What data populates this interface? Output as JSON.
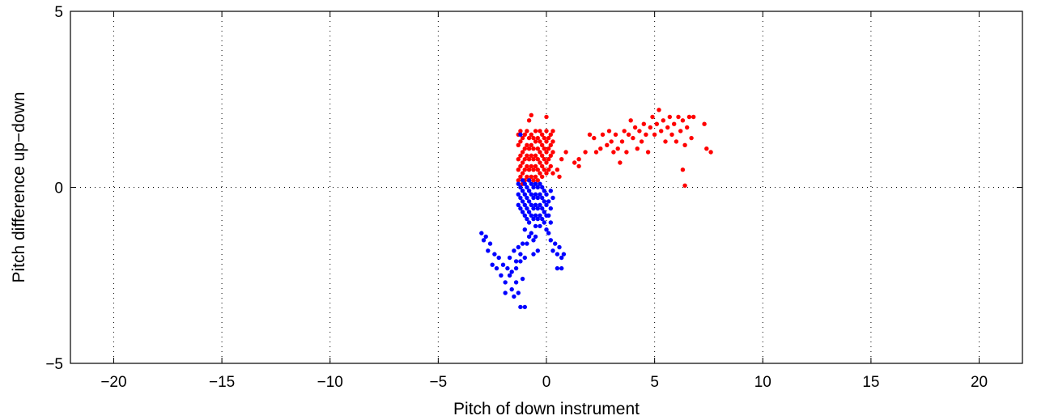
{
  "chart_data": {
    "type": "scatter",
    "title": "",
    "xlabel": "Pitch of down instrument",
    "ylabel": "Pitch difference up−down",
    "xlim": [
      -22,
      22
    ],
    "ylim": [
      -5,
      5
    ],
    "xticks": [
      -20,
      -15,
      -10,
      -5,
      0,
      5,
      10,
      15,
      20
    ],
    "yticks": [
      -5,
      0,
      5
    ],
    "xtick_labels": [
      "−20",
      "−15",
      "−10",
      "−5",
      "0",
      "5",
      "10",
      "15",
      "20"
    ],
    "ytick_labels": [
      "−5",
      "0",
      "5"
    ],
    "grid": true,
    "grid_style": "dotted",
    "legend": "none",
    "series": [
      {
        "color": "#ff0000",
        "points": [
          [
            -1.3,
            0.2
          ],
          [
            -1.3,
            0.5
          ],
          [
            -1.3,
            0.8
          ],
          [
            -1.3,
            1.2
          ],
          [
            -1.3,
            1.5
          ],
          [
            -1.2,
            0.3
          ],
          [
            -1.2,
            0.6
          ],
          [
            -1.2,
            0.9
          ],
          [
            -1.2,
            1.3
          ],
          [
            -1.2,
            1.6
          ],
          [
            -1.1,
            0.1
          ],
          [
            -1.1,
            0.4
          ],
          [
            -1.1,
            0.7
          ],
          [
            -1.1,
            1.0
          ],
          [
            -1.1,
            1.4
          ],
          [
            -1.0,
            0.2
          ],
          [
            -1.0,
            0.5
          ],
          [
            -1.0,
            0.8
          ],
          [
            -1.0,
            1.1
          ],
          [
            -1.0,
            1.5
          ],
          [
            -0.9,
            0.3
          ],
          [
            -0.9,
            0.6
          ],
          [
            -0.9,
            0.9
          ],
          [
            -0.9,
            1.2
          ],
          [
            -0.9,
            1.6
          ],
          [
            -0.8,
            0.2
          ],
          [
            -0.8,
            0.5
          ],
          [
            -0.8,
            0.8
          ],
          [
            -0.8,
            1.1
          ],
          [
            -0.8,
            1.4
          ],
          [
            -0.8,
            1.9
          ],
          [
            -0.7,
            0.3
          ],
          [
            -0.7,
            0.6
          ],
          [
            -0.7,
            0.9
          ],
          [
            -0.7,
            1.2
          ],
          [
            -0.7,
            1.5
          ],
          [
            -0.7,
            2.05
          ],
          [
            -0.6,
            0.2
          ],
          [
            -0.6,
            0.5
          ],
          [
            -0.6,
            0.8
          ],
          [
            -0.6,
            1.1
          ],
          [
            -0.6,
            1.4
          ],
          [
            -0.5,
            0.3
          ],
          [
            -0.5,
            0.6
          ],
          [
            -0.5,
            0.9
          ],
          [
            -0.5,
            1.3
          ],
          [
            -0.5,
            1.6
          ],
          [
            -0.4,
            0.2
          ],
          [
            -0.4,
            0.5
          ],
          [
            -0.4,
            0.8
          ],
          [
            -0.4,
            1.1
          ],
          [
            -0.4,
            1.4
          ],
          [
            -0.3,
            0.4
          ],
          [
            -0.3,
            0.7
          ],
          [
            -0.3,
            1.0
          ],
          [
            -0.3,
            1.3
          ],
          [
            -0.3,
            1.6
          ],
          [
            -0.2,
            0.3
          ],
          [
            -0.2,
            0.6
          ],
          [
            -0.2,
            0.9
          ],
          [
            -0.2,
            1.2
          ],
          [
            -0.2,
            1.5
          ],
          [
            -0.1,
            0.5
          ],
          [
            -0.1,
            0.8
          ],
          [
            -0.1,
            1.1
          ],
          [
            -0.1,
            1.4
          ],
          [
            0.0,
            0.4
          ],
          [
            0.0,
            0.7
          ],
          [
            0.0,
            1.0
          ],
          [
            0.0,
            1.3
          ],
          [
            0.0,
            1.6
          ],
          [
            0.0,
            2.0
          ],
          [
            0.1,
            0.5
          ],
          [
            0.1,
            0.8
          ],
          [
            0.1,
            1.1
          ],
          [
            0.1,
            1.4
          ],
          [
            0.2,
            0.6
          ],
          [
            0.2,
            0.9
          ],
          [
            0.2,
            1.2
          ],
          [
            0.2,
            1.5
          ],
          [
            0.3,
            0.4
          ],
          [
            0.3,
            1.0
          ],
          [
            0.3,
            1.3
          ],
          [
            0.3,
            1.6
          ],
          [
            0.5,
            0.5
          ],
          [
            0.6,
            0.3
          ],
          [
            0.7,
            0.8
          ],
          [
            0.9,
            1.0
          ],
          [
            1.3,
            0.7
          ],
          [
            1.5,
            0.8
          ],
          [
            1.5,
            0.6
          ],
          [
            1.8,
            1.0
          ],
          [
            2.0,
            1.5
          ],
          [
            2.2,
            1.4
          ],
          [
            2.3,
            1.0
          ],
          [
            2.5,
            1.1
          ],
          [
            2.6,
            1.5
          ],
          [
            2.8,
            1.2
          ],
          [
            2.9,
            1.6
          ],
          [
            3.0,
            1.3
          ],
          [
            3.1,
            1.0
          ],
          [
            3.2,
            1.5
          ],
          [
            3.3,
            1.1
          ],
          [
            3.4,
            0.7
          ],
          [
            3.5,
            1.3
          ],
          [
            3.6,
            1.6
          ],
          [
            3.7,
            1.0
          ],
          [
            3.8,
            1.5
          ],
          [
            3.9,
            1.9
          ],
          [
            4.0,
            1.4
          ],
          [
            4.1,
            1.7
          ],
          [
            4.2,
            1.1
          ],
          [
            4.3,
            1.6
          ],
          [
            4.4,
            1.3
          ],
          [
            4.5,
            1.8
          ],
          [
            4.6,
            1.5
          ],
          [
            4.7,
            1.0
          ],
          [
            4.8,
            1.7
          ],
          [
            4.9,
            2.0
          ],
          [
            5.0,
            1.5
          ],
          [
            5.1,
            1.8
          ],
          [
            5.2,
            2.2
          ],
          [
            5.3,
            1.6
          ],
          [
            5.4,
            1.9
          ],
          [
            5.5,
            1.3
          ],
          [
            5.6,
            1.7
          ],
          [
            5.7,
            2.0
          ],
          [
            5.8,
            1.5
          ],
          [
            5.9,
            1.8
          ],
          [
            6.0,
            1.3
          ],
          [
            6.1,
            2.0
          ],
          [
            6.2,
            1.6
          ],
          [
            6.3,
            1.9
          ],
          [
            6.3,
            0.5
          ],
          [
            6.4,
            1.2
          ],
          [
            6.4,
            0.05
          ],
          [
            6.5,
            1.7
          ],
          [
            6.6,
            2.0
          ],
          [
            6.7,
            1.4
          ],
          [
            6.8,
            2.0
          ],
          [
            7.3,
            1.8
          ],
          [
            7.4,
            1.1
          ],
          [
            7.6,
            1.0
          ]
        ]
      },
      {
        "color": "#0000ff",
        "points": [
          [
            -1.3,
            0.1
          ],
          [
            -1.3,
            -0.2
          ],
          [
            -1.3,
            -0.5
          ],
          [
            -1.2,
            0.0
          ],
          [
            -1.2,
            -0.3
          ],
          [
            -1.2,
            -0.6
          ],
          [
            -1.2,
            1.5
          ],
          [
            -1.1,
            0.2
          ],
          [
            -1.1,
            -0.1
          ],
          [
            -1.1,
            -0.4
          ],
          [
            -1.1,
            -0.7
          ],
          [
            -1.0,
            0.1
          ],
          [
            -1.0,
            -0.2
          ],
          [
            -1.0,
            -0.5
          ],
          [
            -1.0,
            -0.8
          ],
          [
            -0.9,
            0.0
          ],
          [
            -0.9,
            -0.3
          ],
          [
            -0.9,
            -0.6
          ],
          [
            -0.9,
            -0.9
          ],
          [
            -0.8,
            0.2
          ],
          [
            -0.8,
            -0.1
          ],
          [
            -0.8,
            -0.4
          ],
          [
            -0.8,
            -0.7
          ],
          [
            -0.8,
            -1.0
          ],
          [
            -0.7,
            0.1
          ],
          [
            -0.7,
            -0.2
          ],
          [
            -0.7,
            -0.5
          ],
          [
            -0.7,
            -0.8
          ],
          [
            -0.6,
            0.0
          ],
          [
            -0.6,
            -0.3
          ],
          [
            -0.6,
            -0.6
          ],
          [
            -0.6,
            -0.9
          ],
          [
            -0.5,
            0.1
          ],
          [
            -0.5,
            -0.2
          ],
          [
            -0.5,
            -0.5
          ],
          [
            -0.5,
            -0.8
          ],
          [
            -0.5,
            -1.1
          ],
          [
            -0.4,
            0.0
          ],
          [
            -0.4,
            -0.3
          ],
          [
            -0.4,
            -0.6
          ],
          [
            -0.4,
            -0.9
          ],
          [
            -0.3,
            0.1
          ],
          [
            -0.3,
            -0.2
          ],
          [
            -0.3,
            -0.5
          ],
          [
            -0.3,
            -0.8
          ],
          [
            -0.3,
            -1.1
          ],
          [
            -0.2,
            0.0
          ],
          [
            -0.2,
            -0.3
          ],
          [
            -0.2,
            -0.6
          ],
          [
            -0.2,
            -0.9
          ],
          [
            -0.1,
            -0.1
          ],
          [
            -0.1,
            -0.4
          ],
          [
            -0.1,
            -0.7
          ],
          [
            -0.1,
            -1.0
          ],
          [
            0.0,
            -0.2
          ],
          [
            0.0,
            -0.5
          ],
          [
            0.0,
            -0.8
          ],
          [
            0.0,
            -1.2
          ],
          [
            0.1,
            -0.4
          ],
          [
            0.1,
            -0.8
          ],
          [
            0.1,
            -1.3
          ],
          [
            0.2,
            -0.1
          ],
          [
            0.2,
            -0.6
          ],
          [
            0.2,
            -1.0
          ],
          [
            0.2,
            -1.5
          ],
          [
            0.3,
            -0.3
          ],
          [
            0.3,
            -1.8
          ],
          [
            0.4,
            -1.6
          ],
          [
            0.5,
            -1.9
          ],
          [
            0.5,
            -2.3
          ],
          [
            0.6,
            -1.7
          ],
          [
            0.7,
            -2.0
          ],
          [
            0.7,
            -2.3
          ],
          [
            0.8,
            -1.9
          ],
          [
            -0.4,
            -1.8
          ],
          [
            -0.6,
            -1.5
          ],
          [
            -0.8,
            -1.4
          ],
          [
            -1.0,
            -1.2
          ],
          [
            -1.1,
            -1.6
          ],
          [
            -1.2,
            -1.9
          ],
          [
            -1.3,
            -1.7
          ],
          [
            -1.4,
            -2.1
          ],
          [
            -1.5,
            -1.8
          ],
          [
            -1.6,
            -2.4
          ],
          [
            -1.7,
            -2.0
          ],
          [
            -1.8,
            -2.3
          ],
          [
            -1.9,
            -2.7
          ],
          [
            -2.0,
            -2.2
          ],
          [
            -2.1,
            -2.5
          ],
          [
            -2.2,
            -2.0
          ],
          [
            -2.3,
            -2.3
          ],
          [
            -2.4,
            -1.9
          ],
          [
            -2.5,
            -2.2
          ],
          [
            -2.6,
            -1.6
          ],
          [
            -2.7,
            -1.8
          ],
          [
            -2.8,
            -1.4
          ],
          [
            -2.9,
            -1.5
          ],
          [
            -3.0,
            -1.3
          ],
          [
            -1.6,
            -2.9
          ],
          [
            -1.5,
            -3.1
          ],
          [
            -1.4,
            -2.7
          ],
          [
            -1.3,
            -3.0
          ],
          [
            -1.2,
            -3.4
          ],
          [
            -1.1,
            -2.6
          ],
          [
            -1.0,
            -3.4
          ],
          [
            -1.9,
            -3.0
          ],
          [
            -1.7,
            -2.5
          ],
          [
            -1.4,
            -2.3
          ],
          [
            -1.2,
            -2.1
          ],
          [
            -1.0,
            -2.0
          ],
          [
            -0.9,
            -1.6
          ],
          [
            -0.7,
            -1.3
          ],
          [
            -0.6,
            -1.9
          ],
          [
            -0.5,
            -1.4
          ]
        ]
      }
    ]
  }
}
